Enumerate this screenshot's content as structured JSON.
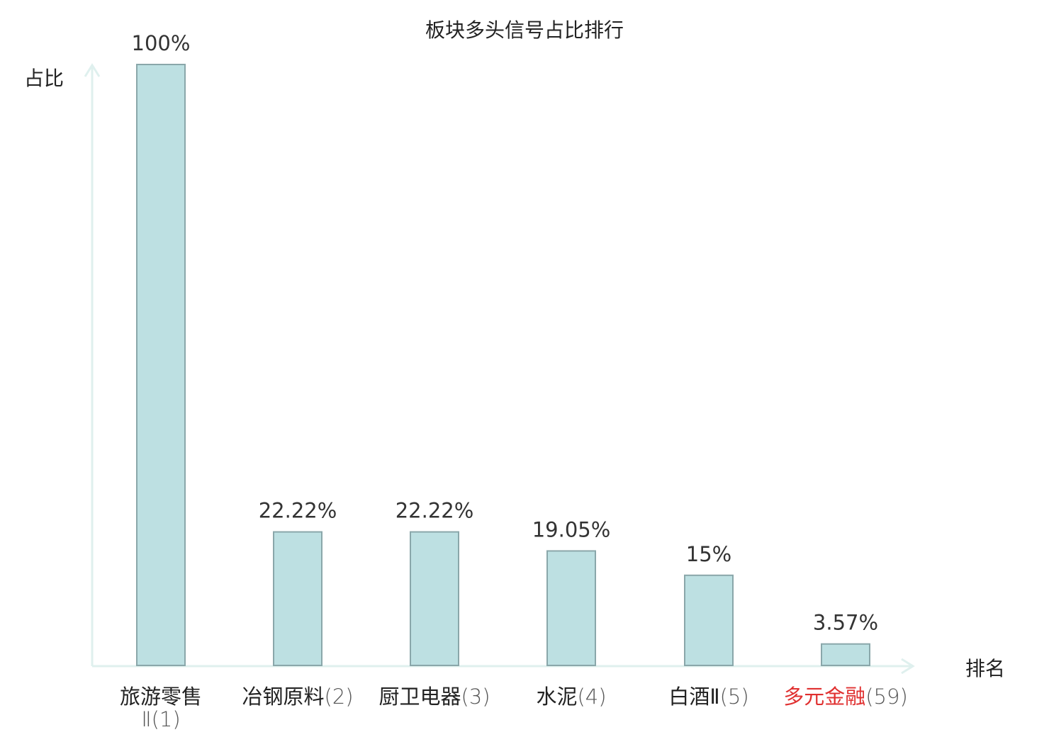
{
  "chart_data": {
    "type": "bar",
    "title": "板块多头信号占比排行",
    "xlabel": "排名",
    "ylabel": "占比",
    "ylim": [
      0,
      100
    ],
    "categories": [
      {
        "name": "旅游零售Ⅱ",
        "rank_label": "(1)",
        "highlight": false
      },
      {
        "name": "冶钢原料",
        "rank_label": "(2)",
        "highlight": false
      },
      {
        "name": "厨卫电器",
        "rank_label": "(3)",
        "highlight": false
      },
      {
        "name": "水泥",
        "rank_label": "(4)",
        "highlight": false
      },
      {
        "name": "白酒Ⅱ",
        "rank_label": "(5)",
        "highlight": false
      },
      {
        "name": "多元金融",
        "rank_label": "(59)",
        "highlight": true
      }
    ],
    "values": [
      100,
      22.22,
      22.22,
      19.05,
      15,
      3.57
    ],
    "value_labels": [
      "100%",
      "22.22%",
      "22.22%",
      "19.05%",
      "15%",
      "3.57%"
    ],
    "grid": false,
    "legend": "none"
  },
  "colors": {
    "bar_fill": "#bde0e2",
    "bar_stroke": "#8aa7aa",
    "axis": "#dff0ee",
    "text": "#333333",
    "highlight": "#e03030"
  }
}
